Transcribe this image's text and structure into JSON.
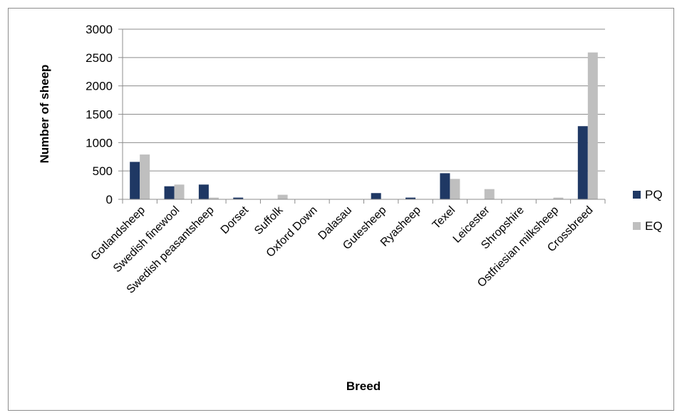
{
  "chart_data": {
    "type": "bar",
    "title": "",
    "xlabel": "Breed",
    "ylabel": "Number of sheep",
    "ylim": [
      0,
      3000
    ],
    "yticks": [
      0,
      500,
      1000,
      1500,
      2000,
      2500,
      3000
    ],
    "grid": "horizontal",
    "legend_position": "right",
    "categories": [
      "Gotlandsheep",
      "Swedish finewool",
      "Swedish peasantsheep",
      "Dorset",
      "Suffolk",
      "Oxford Down",
      "Dalasau",
      "Gutesheep",
      "Ryasheep",
      "Texel",
      "Leicester",
      "Shropshire",
      "Ostfriesian milksheep",
      "Crossbreed"
    ],
    "series": [
      {
        "name": "PQ",
        "color": "#1f3864",
        "values": [
          660,
          230,
          260,
          30,
          0,
          0,
          0,
          110,
          30,
          460,
          0,
          0,
          0,
          1290
        ]
      },
      {
        "name": "EQ",
        "color": "#bfbfbf",
        "values": [
          790,
          260,
          30,
          0,
          80,
          0,
          0,
          0,
          0,
          360,
          180,
          0,
          30,
          2590
        ]
      }
    ]
  }
}
